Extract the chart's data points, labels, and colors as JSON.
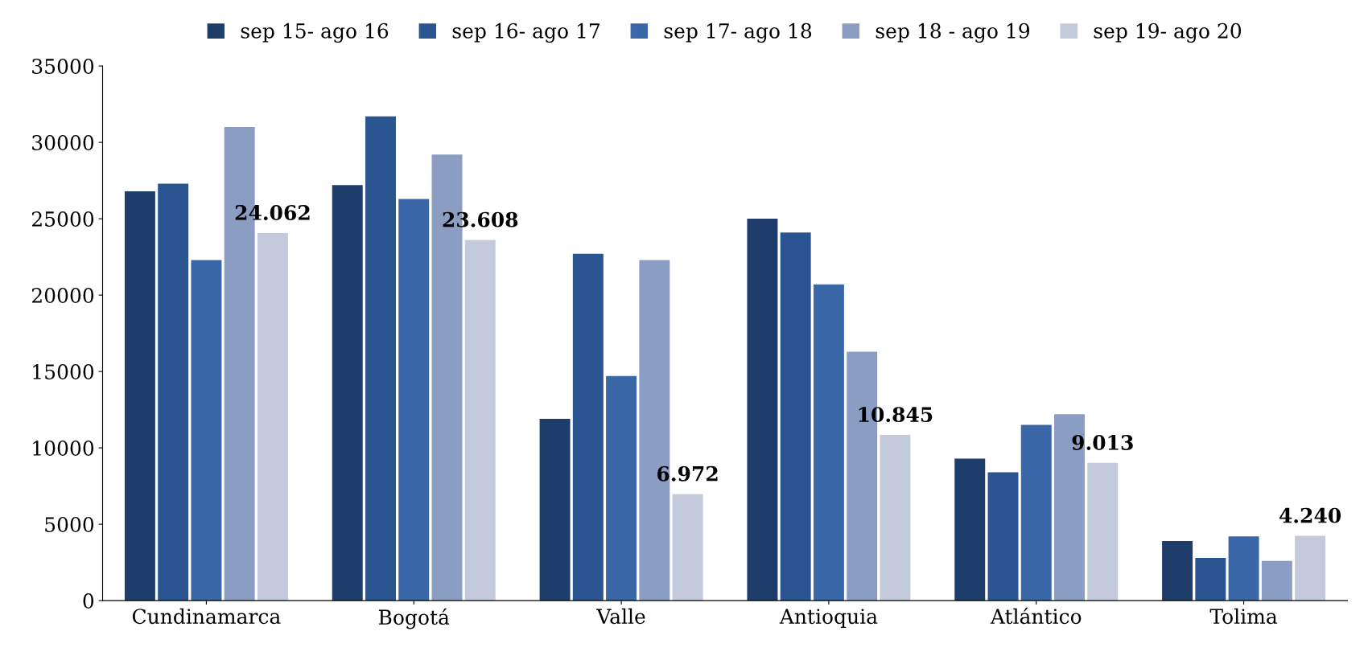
{
  "chart_data": {
    "type": "bar",
    "categories": [
      "Cundinamarca",
      "Bogotá",
      "Valle",
      "Antioquia",
      "Atlántico",
      "Tolima"
    ],
    "series": [
      {
        "name": "sep 15- ago 16",
        "color": "#1f3d6b",
        "values": [
          26800,
          27200,
          11900,
          25000,
          9300,
          3900
        ]
      },
      {
        "name": "sep 16- ago 17",
        "color": "#2a5590",
        "values": [
          27300,
          31700,
          22700,
          24100,
          8400,
          2800
        ]
      },
      {
        "name": "sep 17- ago 18",
        "color": "#3a67a8",
        "values": [
          22300,
          26300,
          14700,
          20700,
          11500,
          4200
        ]
      },
      {
        "name": "sep 18 - ago 19",
        "color": "#8b9dc3",
        "values": [
          31000,
          29200,
          22300,
          16300,
          12200,
          2600
        ]
      },
      {
        "name": "sep 19- ago 20",
        "color": "#c3cadc",
        "values": [
          24062,
          23608,
          6972,
          10845,
          9013,
          4240
        ],
        "value_labels": [
          "24.062",
          "23.608",
          "6.972",
          "10.845",
          "9.013",
          "4.240"
        ]
      }
    ],
    "ylim": [
      0,
      35000
    ],
    "yticks": [
      0,
      5000,
      10000,
      15000,
      20000,
      25000,
      30000,
      35000
    ],
    "grid": false,
    "legend": "top"
  }
}
